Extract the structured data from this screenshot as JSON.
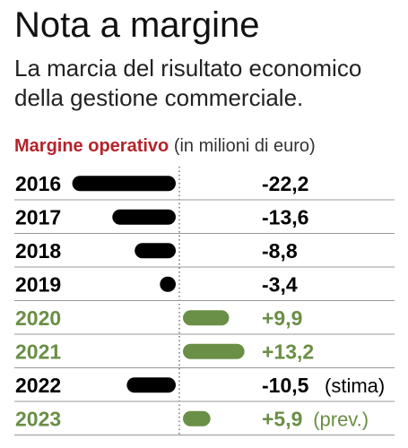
{
  "title": "Nota a margine",
  "subtitle": "La marcia del risultato economico della gestione commerciale.",
  "header": {
    "highlight": "Margine operativo",
    "unit": "(in milioni di euro)"
  },
  "colors": {
    "negative": "#000000",
    "positive": "#6a8f46",
    "highlight": "#b5232a"
  },
  "chart_data": {
    "type": "bar",
    "categories": [
      "2016",
      "2017",
      "2018",
      "2019",
      "2020",
      "2021",
      "2022",
      "2023"
    ],
    "values": [
      -22.2,
      -13.6,
      -8.8,
      -3.4,
      9.9,
      13.2,
      -10.5,
      5.9
    ],
    "value_labels": [
      "-22,2",
      "-13,6",
      "-8,8",
      "-3,4",
      "+9,9",
      "+13,2",
      "-10,5",
      "+5,9"
    ],
    "notes": [
      "",
      "",
      "",
      "",
      "",
      "",
      "(stima)",
      "(prev.)"
    ],
    "title": "Margine operativo",
    "ylabel": "(in milioni di euro)"
  }
}
